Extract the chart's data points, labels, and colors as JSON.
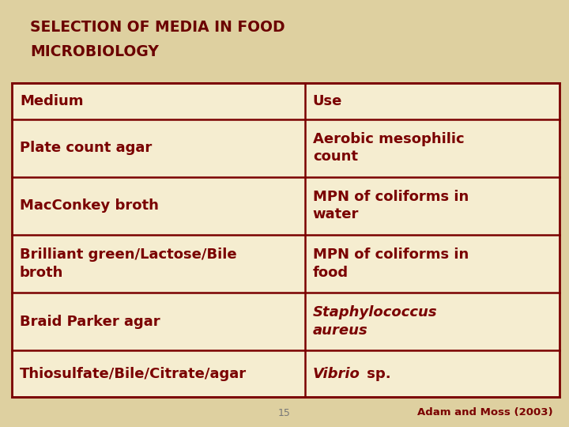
{
  "title_line1": "SELECTION OF MEDIA IN FOOD",
  "title_line2": "MICROBIOLOGY",
  "title_color": "#6B0000",
  "background_color": "#DED0A0",
  "table_bg_color": "#F5EDD0",
  "border_color": "#7A0000",
  "text_color": "#7A0000",
  "header_row": [
    "Medium",
    "Use"
  ],
  "rows": [
    [
      "Plate count agar",
      "Aerobic mesophilic\ncount"
    ],
    [
      "MacConkey broth",
      "MPN of coliforms in\nwater"
    ],
    [
      "Brilliant green/Lactose/Bile\nbroth",
      "MPN of coliforms in\nfood"
    ],
    [
      "Braid Parker agar",
      "Staphylococcus\naureus"
    ],
    [
      "Thiosulfate/Bile/Citrate/agar",
      "Vibrio sp."
    ]
  ],
  "footer": "Adam and Moss (2003)",
  "page_number": "15",
  "col_split": 0.535,
  "title_fontsize": 13.5,
  "cell_fontsize": 13.0,
  "footer_fontsize": 9.5
}
